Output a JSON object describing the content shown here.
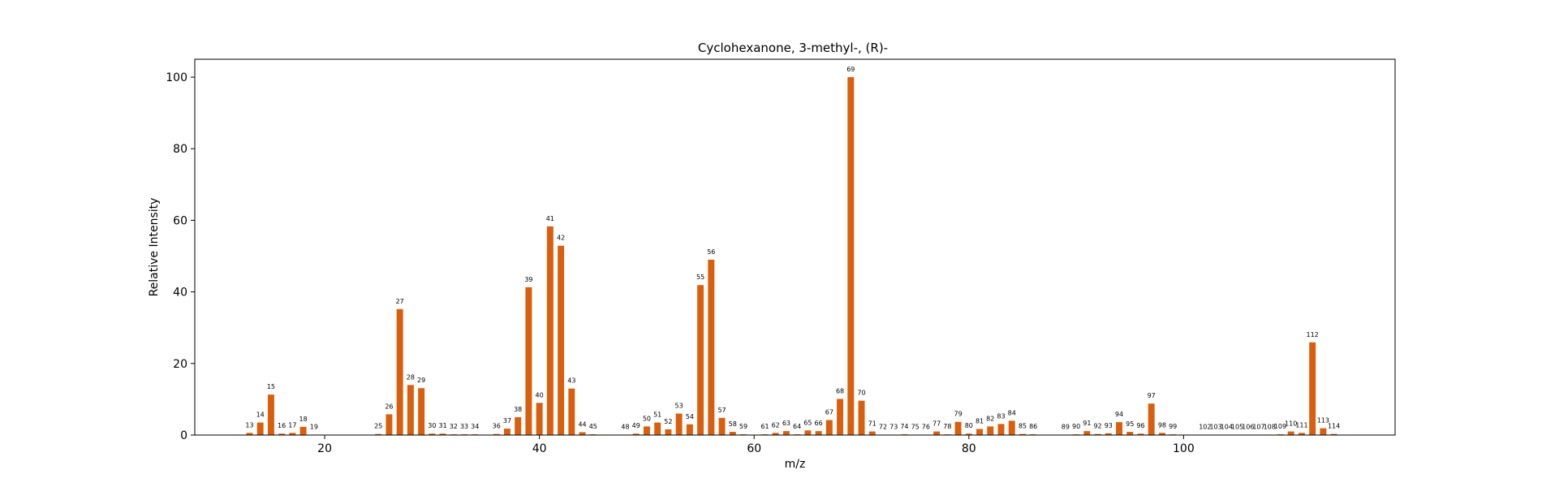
{
  "chart_data": {
    "type": "bar",
    "title": "Cyclohexanone, 3-methyl-, (R)-",
    "xlabel": "m/z",
    "ylabel": "Relative Intensity",
    "xlim": [
      7.9,
      119.7
    ],
    "ylim": [
      0,
      105
    ],
    "xticks": [
      20,
      40,
      60,
      80,
      100
    ],
    "yticks": [
      0,
      20,
      40,
      60,
      80,
      100
    ],
    "grid": false,
    "bar_color": "#d95f0e",
    "x": [
      13,
      14,
      15,
      16,
      17,
      18,
      19,
      25,
      26,
      27,
      28,
      29,
      30,
      31,
      32,
      33,
      34,
      36,
      37,
      38,
      39,
      40,
      41,
      42,
      43,
      44,
      45,
      48,
      49,
      50,
      51,
      52,
      53,
      54,
      55,
      56,
      57,
      58,
      59,
      61,
      62,
      63,
      64,
      65,
      66,
      67,
      68,
      69,
      70,
      71,
      72,
      73,
      74,
      75,
      76,
      77,
      78,
      79,
      80,
      81,
      82,
      83,
      84,
      85,
      86,
      89,
      90,
      91,
      92,
      93,
      94,
      95,
      96,
      97,
      98,
      99,
      102,
      103,
      104,
      105,
      106,
      107,
      108,
      109,
      110,
      111,
      112,
      113,
      114
    ],
    "values": [
      0.6,
      3.5,
      11.3,
      0.4,
      0.6,
      2.3,
      0.1,
      0.3,
      5.8,
      35.2,
      14.0,
      13.1,
      0.4,
      0.4,
      0.2,
      0.2,
      0.2,
      0.3,
      1.8,
      5.0,
      41.3,
      9.0,
      58.3,
      52.9,
      13.0,
      0.8,
      0.2,
      0.1,
      0.4,
      2.4,
      3.5,
      1.6,
      6.0,
      3.0,
      41.9,
      49.0,
      4.8,
      0.9,
      0.2,
      0.2,
      0.6,
      1.1,
      0.2,
      1.3,
      1.1,
      4.2,
      10.1,
      100.0,
      9.6,
      1.0,
      0.1,
      0.1,
      0.2,
      0.1,
      0.1,
      1.0,
      0.2,
      3.7,
      0.4,
      1.7,
      2.4,
      3.1,
      4.0,
      0.3,
      0.2,
      0.1,
      0.2,
      1.1,
      0.3,
      0.5,
      3.6,
      0.9,
      0.4,
      8.8,
      0.6,
      0.2,
      0.1,
      0.1,
      0.1,
      0.1,
      0.1,
      0.1,
      0.1,
      0.2,
      1.0,
      0.6,
      25.9,
      1.9,
      0.3
    ],
    "labels": [
      "13",
      "14",
      "15",
      "16",
      "17",
      "18",
      "19",
      "25",
      "26",
      "27",
      "28",
      "29",
      "30",
      "31",
      "32",
      "33",
      "34",
      "36",
      "37",
      "38",
      "39",
      "40",
      "41",
      "42",
      "43",
      "44",
      "45",
      "48",
      "49",
      "50",
      "51",
      "52",
      "53",
      "54",
      "55",
      "56",
      "57",
      "58",
      "59",
      "61",
      "62",
      "63",
      "64",
      "65",
      "66",
      "67",
      "68",
      "69",
      "70",
      "71",
      "72",
      "73",
      "74",
      "75",
      "76",
      "77",
      "78",
      "79",
      "80",
      "81",
      "82",
      "83",
      "84",
      "85",
      "86",
      "89",
      "90",
      "91",
      "92",
      "93",
      "94",
      "95",
      "96",
      "97",
      "98",
      "99",
      "102",
      "103",
      "104",
      "105",
      "106",
      "107",
      "108",
      "109",
      "110",
      "111",
      "112",
      "113",
      "114"
    ]
  }
}
